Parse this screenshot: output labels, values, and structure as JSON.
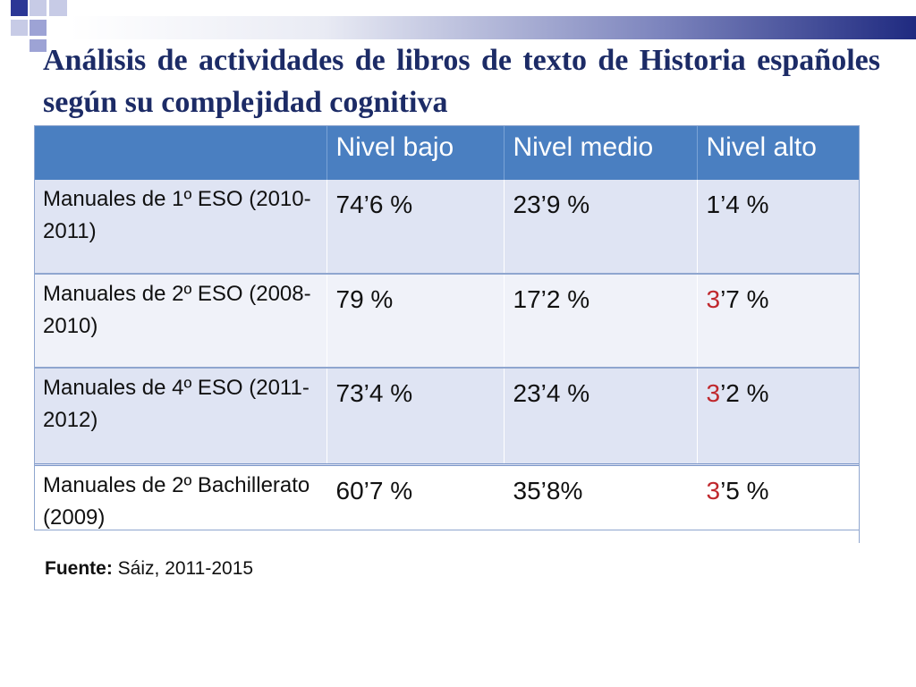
{
  "colors": {
    "accent": "#4a7fc1",
    "title": "#1c2b66",
    "highlight": "#c0282d"
  },
  "slide": {
    "title": "Análisis de actividades de libros de texto de Historia españoles según su complejidad cognitiva"
  },
  "table": {
    "headers": [
      "",
      "Nivel bajo",
      "Nivel medio",
      "Nivel alto"
    ],
    "rows": [
      {
        "label": "Manuales de 1º ESO (2010-2011)",
        "bajo": "74’6 %",
        "medio": "23’9 %",
        "alto": "1’4 %"
      },
      {
        "label": "Manuales de 2º ESO (2008-2010)",
        "bajo": "79 %",
        "medio": "17’2 %",
        "alto_a": "3",
        "alto_b": "’7 %"
      },
      {
        "label": "Manuales de 4º ESO (2011-2012)",
        "bajo": "73’4 %",
        "medio": "23’4 %",
        "alto_a": "3",
        "alto_b": "’2 %"
      },
      {
        "label": "Manuales de 2º Bachillerato (2009)",
        "bajo": "60’7 %",
        "medio": "35’8%",
        "alto_a": "3",
        "alto_b": "’5 %"
      }
    ]
  },
  "source": {
    "label": "Fuente:",
    "text": "Sáiz, 2011-2015"
  }
}
